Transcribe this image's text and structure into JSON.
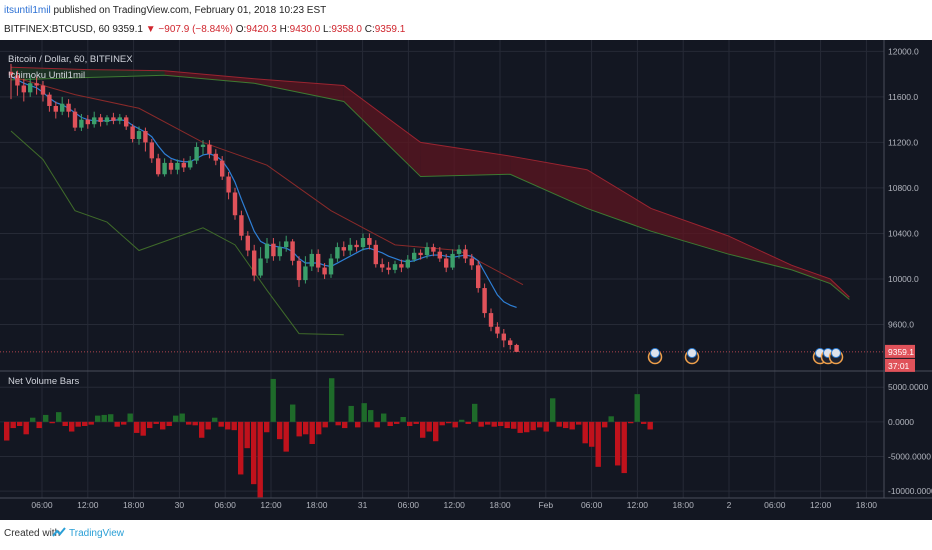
{
  "publish": {
    "user": "itsuntil1mil",
    "text": "published on TradingView.com, February 01, 2018 10:23 EST"
  },
  "ticker": {
    "symbol": "BITFINEX:BTCUSD, 60",
    "last": "9359.1",
    "arrow": "▼",
    "change": "−907.9 (−8.84%)",
    "o_label": "O:",
    "o": "9420.3",
    "h_label": "H:",
    "h": "9430.0",
    "l_label": "L:",
    "l": "9358.0",
    "c_label": "C:",
    "c": "9359.1"
  },
  "chart_data": [
    {
      "type": "candlestick",
      "title": "Bitcoin / Dollar, 60, BITFINEX",
      "indicator": "Ichimoku Until1mil",
      "ylim": [
        9200,
        12100
      ],
      "y_ticks": [
        "12000.0",
        "11600.0",
        "11200.0",
        "10800.0",
        "10400.0",
        "10000.0",
        "9600.0"
      ],
      "last_price_label": "9359.1",
      "countdown_label": "37:01",
      "x_ticks": [
        "06:00",
        "12:00",
        "18:00",
        "30",
        "06:00",
        "12:00",
        "18:00",
        "31",
        "06:00",
        "12:00",
        "18:00",
        "Feb",
        "06:00",
        "12:00",
        "18:00",
        "2",
        "06:00",
        "12:00",
        "18:00"
      ],
      "colors": {
        "up": "#3b9f6b",
        "down": "#e0525a",
        "tenkan": "#2e7fd6",
        "kijun": "#8a2a2a",
        "chikou": "#3f6b2a",
        "cloud_bear": "#5e1620",
        "cloud_bull": "#1f3a24"
      },
      "candles": [
        [
          11820,
          11790,
          11890,
          11580
        ],
        [
          11790,
          11700,
          11830,
          11610
        ],
        [
          11700,
          11640,
          11760,
          11560
        ],
        [
          11640,
          11720,
          11790,
          11600
        ],
        [
          11720,
          11700,
          11780,
          11620
        ],
        [
          11700,
          11620,
          11740,
          11560
        ],
        [
          11620,
          11520,
          11640,
          11470
        ],
        [
          11520,
          11470,
          11560,
          11410
        ],
        [
          11470,
          11540,
          11600,
          11440
        ],
        [
          11540,
          11470,
          11580,
          11420
        ],
        [
          11470,
          11330,
          11500,
          11300
        ],
        [
          11330,
          11400,
          11450,
          11300
        ],
        [
          11400,
          11360,
          11440,
          11320
        ],
        [
          11360,
          11420,
          11470,
          11330
        ],
        [
          11420,
          11380,
          11450,
          11340
        ],
        [
          11380,
          11420,
          11440,
          11350
        ],
        [
          11420,
          11390,
          11460,
          11360
        ],
        [
          11390,
          11420,
          11450,
          11360
        ],
        [
          11420,
          11340,
          11440,
          11310
        ],
        [
          11340,
          11230,
          11360,
          11200
        ],
        [
          11230,
          11300,
          11340,
          11180
        ],
        [
          11300,
          11200,
          11330,
          11120
        ],
        [
          11200,
          11060,
          11230,
          11020
        ],
        [
          11060,
          10920,
          11100,
          10900
        ],
        [
          10920,
          11020,
          11060,
          10900
        ],
        [
          11020,
          10960,
          11050,
          10920
        ],
        [
          10960,
          11020,
          11050,
          10920
        ],
        [
          11020,
          10980,
          11060,
          10940
        ],
        [
          10980,
          11040,
          11080,
          10960
        ],
        [
          11040,
          11160,
          11200,
          11010
        ],
        [
          11160,
          11180,
          11220,
          11090
        ],
        [
          11180,
          11100,
          11220,
          11060
        ],
        [
          11100,
          11040,
          11140,
          11000
        ],
        [
          11040,
          10900,
          11080,
          10870
        ],
        [
          10900,
          10760,
          10940,
          10700
        ],
        [
          10760,
          10560,
          10800,
          10520
        ],
        [
          10560,
          10380,
          10600,
          10340
        ],
        [
          10380,
          10250,
          10420,
          10200
        ],
        [
          10250,
          10030,
          10300,
          9980
        ],
        [
          10030,
          10180,
          10280,
          10010
        ],
        [
          10180,
          10310,
          10360,
          10140
        ],
        [
          10310,
          10200,
          10360,
          10160
        ],
        [
          10200,
          10280,
          10330,
          10160
        ],
        [
          10280,
          10330,
          10380,
          10240
        ],
        [
          10330,
          10160,
          10350,
          10120
        ],
        [
          10160,
          9990,
          10200,
          9930
        ],
        [
          9990,
          10110,
          10200,
          9960
        ],
        [
          10110,
          10220,
          10260,
          10070
        ],
        [
          10220,
          10100,
          10260,
          10060
        ],
        [
          10100,
          10040,
          10140,
          10000
        ],
        [
          10040,
          10180,
          10220,
          10010
        ],
        [
          10180,
          10280,
          10320,
          10150
        ],
        [
          10280,
          10250,
          10330,
          10200
        ],
        [
          10250,
          10300,
          10360,
          10210
        ],
        [
          10300,
          10280,
          10340,
          10240
        ],
        [
          10280,
          10360,
          10400,
          10250
        ],
        [
          10360,
          10300,
          10400,
          10260
        ],
        [
          10300,
          10130,
          10340,
          10100
        ],
        [
          10130,
          10100,
          10180,
          10060
        ],
        [
          10100,
          10080,
          10150,
          10040
        ],
        [
          10080,
          10130,
          10160,
          10050
        ],
        [
          10130,
          10100,
          10170,
          10060
        ],
        [
          10100,
          10170,
          10210,
          10090
        ],
        [
          10170,
          10230,
          10270,
          10150
        ],
        [
          10230,
          10210,
          10260,
          10170
        ],
        [
          10210,
          10280,
          10320,
          10180
        ],
        [
          10280,
          10240,
          10310,
          10200
        ],
        [
          10240,
          10180,
          10280,
          10150
        ],
        [
          10180,
          10100,
          10220,
          10060
        ],
        [
          10100,
          10220,
          10260,
          10080
        ],
        [
          10220,
          10260,
          10300,
          10180
        ],
        [
          10260,
          10180,
          10300,
          10140
        ],
        [
          10180,
          10120,
          10220,
          10080
        ],
        [
          10120,
          9920,
          10160,
          9880
        ],
        [
          9920,
          9700,
          9960,
          9660
        ],
        [
          9700,
          9580,
          9740,
          9540
        ],
        [
          9580,
          9520,
          9620,
          9480
        ],
        [
          9520,
          9460,
          9560,
          9400
        ],
        [
          9460,
          9420,
          9480,
          9380
        ],
        [
          9420,
          9359,
          9430,
          9358
        ]
      ],
      "tenkan": [
        11780,
        11750,
        11720,
        11700,
        11680,
        11640,
        11590,
        11550,
        11530,
        11500,
        11460,
        11420,
        11400,
        11390,
        11390,
        11390,
        11395,
        11400,
        11390,
        11350,
        11320,
        11290,
        11250,
        11170,
        11100,
        11060,
        11040,
        11030,
        11030,
        11060,
        11090,
        11100,
        11080,
        11040,
        10960,
        10850,
        10700,
        10560,
        10420,
        10330,
        10300,
        10290,
        10280,
        10270,
        10240,
        10180,
        10140,
        10140,
        10140,
        10120,
        10110,
        10140,
        10170,
        10200,
        10230,
        10260,
        10270,
        10250,
        10230,
        10200,
        10180,
        10160,
        10150,
        10160,
        10180,
        10200,
        10210,
        10210,
        10200,
        10190,
        10200,
        10210,
        10200,
        10160,
        10060,
        9960,
        9860,
        9800,
        9770,
        9750
      ],
      "kijun_x": [
        0,
        10,
        20,
        30,
        40,
        50,
        60,
        70,
        80
      ],
      "kijun": [
        11780,
        11620,
        11500,
        11200,
        11000,
        10600,
        10300,
        10250,
        9950
      ],
      "chikou_x": [
        0,
        5,
        10,
        15,
        20,
        25,
        30,
        35,
        40,
        45,
        52
      ],
      "chikou": [
        11300,
        11050,
        10600,
        10500,
        10250,
        10350,
        10450,
        10300,
        9900,
        9520,
        9510
      ],
      "cloud": [
        [
          0,
          11860,
          11750
        ],
        [
          12,
          11840,
          11770
        ],
        [
          24,
          11830,
          11790
        ],
        [
          38,
          11760,
          11720
        ],
        [
          52,
          11700,
          11560
        ],
        [
          64,
          11200,
          10900
        ],
        [
          78,
          11080,
          10920
        ],
        [
          90,
          10960,
          10620
        ],
        [
          100,
          10620,
          10420
        ],
        [
          112,
          10380,
          10220
        ],
        [
          122,
          10120,
          10080
        ],
        [
          128,
          10000,
          9960
        ],
        [
          131,
          9840,
          9820
        ]
      ]
    },
    {
      "type": "bar",
      "title": "Net Volume Bars",
      "ylim": [
        -11000,
        7200
      ],
      "y_ticks": [
        "5000.0000",
        "0.0000",
        "-5000.0000",
        "-10000.0000"
      ],
      "colors": {
        "up": "#1e6b2a",
        "down": "#c0121c"
      },
      "values": [
        -2700,
        -900,
        -600,
        -1800,
        600,
        -900,
        1000,
        -200,
        1400,
        -600,
        -1400,
        -700,
        -600,
        -400,
        900,
        1000,
        1100,
        -700,
        -400,
        1200,
        -1600,
        -2000,
        -900,
        -300,
        -1100,
        -600,
        900,
        1200,
        -400,
        -500,
        -2300,
        -1100,
        600,
        -700,
        -1100,
        -1200,
        -7600,
        -3800,
        -9000,
        -10900,
        -1500,
        6200,
        -2500,
        -4300,
        2500,
        -2100,
        -1800,
        -3200,
        -1800,
        -800,
        6300,
        -500,
        -900,
        2300,
        -800,
        2700,
        1700,
        -800,
        1200,
        -600,
        -300,
        700,
        -600,
        -300,
        -2300,
        -1400,
        -2800,
        -500,
        -200,
        -800,
        300,
        -300,
        2600,
        -700,
        -400,
        -700,
        -600,
        -900,
        -1000,
        -1600,
        -1500,
        -1200,
        -800,
        -1400,
        3400,
        -700,
        -900,
        -1100,
        -400,
        -3100,
        -3600,
        -6500,
        -800,
        800,
        -6300,
        -7400,
        -200,
        4000,
        -300,
        -1100
      ]
    }
  ]
}
